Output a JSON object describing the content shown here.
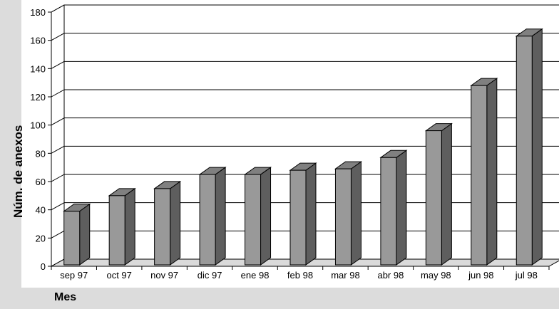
{
  "chart_data": {
    "type": "bar",
    "xlabel": "Mes",
    "ylabel": "Núm. de anexos",
    "ylim": [
      0,
      180
    ],
    "yticks": [
      0,
      20,
      40,
      60,
      80,
      100,
      120,
      140,
      160,
      180
    ],
    "grid": true,
    "style": "3d-columns",
    "categories": [
      "sep 97",
      "oct 97",
      "nov 97",
      "dic 97",
      "ene 98",
      "feb 98",
      "mar 98",
      "abr 98",
      "may 98",
      "jun 98",
      "jul 98"
    ],
    "values": [
      39,
      50,
      55,
      65,
      65,
      68,
      69,
      77,
      96,
      128,
      163
    ],
    "colors": {
      "bar_front": "#999999",
      "bar_side": "#5e5e5e",
      "bar_top": "#808080",
      "floor": "#dadada",
      "background": "#dcdcdc"
    }
  }
}
